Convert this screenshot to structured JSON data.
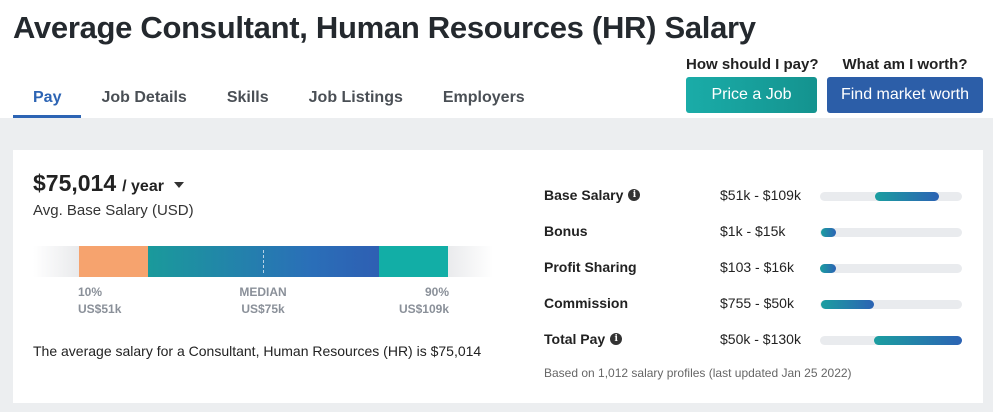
{
  "page": {
    "title": "Average Consultant, Human Resources (HR) Salary"
  },
  "tabs": [
    {
      "label": "Pay",
      "active": true
    },
    {
      "label": "Job Details"
    },
    {
      "label": "Skills"
    },
    {
      "label": "Job Listings"
    },
    {
      "label": "Employers"
    }
  ],
  "cta": {
    "pay_question": "How should I pay?",
    "pay_button": "Price a Job",
    "worth_question": "What am I worth?",
    "worth_button": "Find market worth"
  },
  "summary": {
    "amount": "$75,014",
    "period": "/ year",
    "caption": "Avg. Base Salary (USD)",
    "description": "The average salary for a Consultant, Human Resources (HR) is $75,014"
  },
  "distribution": {
    "p10_label": "10%",
    "p10_value": "US$51k",
    "median_label": "MEDIAN",
    "median_value": "US$75k",
    "p90_label": "90%",
    "p90_value": "US$109k",
    "colors": {
      "low": "#f6a36e",
      "mid_start": "#1a9a9b",
      "mid_end": "#2e5fb3",
      "high": "#12aea6"
    }
  },
  "components": [
    {
      "name": "Base Salary",
      "info_icon": true,
      "range": "$51k - $109k",
      "fill_start": 0.39,
      "fill_end": 0.84
    },
    {
      "name": "Bonus",
      "info_icon": false,
      "range": "$1k - $15k",
      "fill_start": 0.01,
      "fill_end": 0.11
    },
    {
      "name": "Profit Sharing",
      "info_icon": false,
      "range": "$103 - $16k",
      "fill_start": 0.0,
      "fill_end": 0.11
    },
    {
      "name": "Commission",
      "info_icon": false,
      "range": "$755 - $50k",
      "fill_start": 0.01,
      "fill_end": 0.38
    },
    {
      "name": "Total Pay",
      "info_icon": true,
      "range": "$50k - $130k",
      "fill_start": 0.38,
      "fill_end": 1.0
    }
  ],
  "footnote": "Based on 1,012 salary profiles (last updated Jan 25 2022)"
}
